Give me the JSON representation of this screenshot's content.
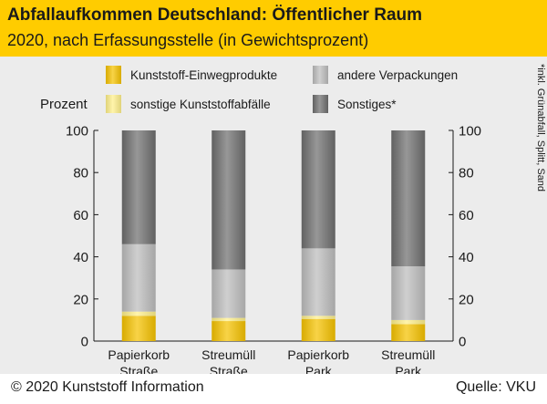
{
  "header": {
    "title": "Abfallaufkommen Deutschland: Öffentlicher Raum",
    "subtitle": "2020, nach Erfassungsstelle (in Gewichtsprozent)"
  },
  "footer": {
    "copyright": "© 2020 Kunststoff Information",
    "source": "Quelle: VKU"
  },
  "chart_data": {
    "type": "bar",
    "stacked": true,
    "ylabel": "Prozent",
    "ylim": [
      0,
      100
    ],
    "yticks": [
      0,
      20,
      40,
      60,
      80,
      100
    ],
    "footnote": "*inkl. Grünabfall, Splitt, Sand",
    "legend_position": "top",
    "categories": [
      [
        "Papierkorb",
        "Straße"
      ],
      [
        "Streumüll",
        "Straße"
      ],
      [
        "Papierkorb",
        "Park"
      ],
      [
        "Streumüll",
        "Park"
      ]
    ],
    "series": [
      {
        "name": "Kunststoff-Einwegprodukte",
        "color": "#f5c200",
        "values": [
          12,
          9.5,
          10.5,
          8
        ]
      },
      {
        "name": "sonstige Kunststoffabfälle",
        "color": "#fff08a",
        "values": [
          2,
          1.5,
          1.5,
          2
        ]
      },
      {
        "name": "andere Verpackungen",
        "color": "#bdbdbd",
        "values": [
          32,
          23,
          32,
          25.5
        ]
      },
      {
        "name": "Sonstiges*",
        "color": "#6e6e6e",
        "values": [
          54,
          66,
          56,
          64.5
        ]
      }
    ]
  }
}
